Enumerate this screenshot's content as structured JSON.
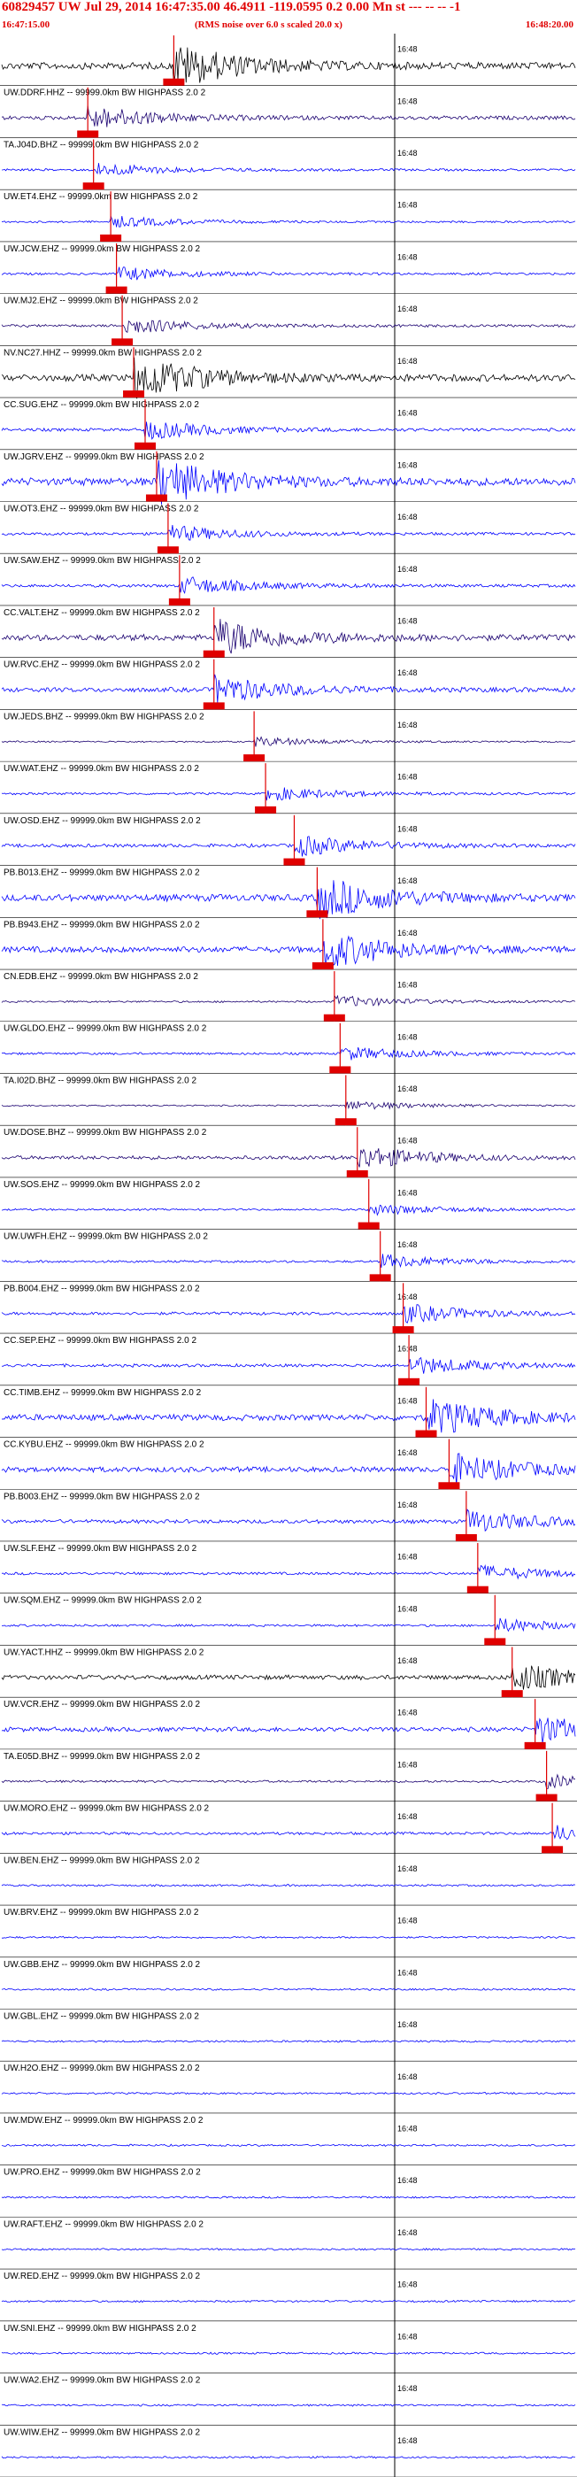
{
  "header": {
    "title": "60829457 UW Jul 29, 2014 16:47:35.00   46.4911 -119.0595  0.2 0.00 Mn st --- -- --  -1",
    "start_time": "16:47:15.00",
    "rms_note": "(RMS noise over 6.0 s scaled 20.0 x)",
    "end_time": "16:48:20.00"
  },
  "colors": {
    "header_text": "#e00000",
    "pick_marker": "#e00000",
    "trace_blue": "#0000ff",
    "trace_navy": "#1a0070",
    "trace_black": "#000000",
    "baseline": "#000000"
  },
  "chart_data": {
    "type": "seismogram",
    "time_start": "16:47:15.00",
    "time_end": "16:48:20.00",
    "minute_tick_label": "16:48",
    "traces": [
      {
        "label": "",
        "color": "black",
        "event": 0.3,
        "amp": 0.9
      },
      {
        "label": "UW.DDRF.HHZ -- 99999.0km BW  HIGHPASS  2.0  2",
        "color": "navy",
        "event": 0.15,
        "amp": 0.5
      },
      {
        "label": "TA.J04D.BHZ -- 99999.0km BW  HIGHPASS  2.0  2",
        "color": "blue",
        "event": 0.16,
        "amp": 0.3
      },
      {
        "label": "UW.ET4.EHZ -- 99999.0km BW  HIGHPASS  2.0  2",
        "color": "blue",
        "event": 0.19,
        "amp": 0.25
      },
      {
        "label": "UW.JCW.EHZ -- 99999.0km BW  HIGHPASS  2.0  2",
        "color": "blue",
        "event": 0.2,
        "amp": 0.3
      },
      {
        "label": "UW.MJ2.EHZ -- 99999.0km BW  HIGHPASS  2.0  2",
        "color": "navy",
        "event": 0.21,
        "amp": 0.35
      },
      {
        "label": "NV.NC27.HHZ -- 99999.0km BW  HIGHPASS  2.0  2",
        "color": "black",
        "event": 0.23,
        "amp": 0.9
      },
      {
        "label": "CC.SUG.EHZ -- 99999.0km BW  HIGHPASS  2.0  2",
        "color": "blue",
        "event": 0.25,
        "amp": 0.4
      },
      {
        "label": "UW.JGRV.EHZ -- 99999.0km BW  HIGHPASS  2.0  2",
        "color": "blue",
        "event": 0.27,
        "amp": 1.0
      },
      {
        "label": "UW.OT3.EHZ -- 99999.0km BW  HIGHPASS  2.0  2",
        "color": "blue",
        "event": 0.29,
        "amp": 0.35
      },
      {
        "label": "UW.SAW.EHZ -- 99999.0km BW  HIGHPASS  2.0  2",
        "color": "blue",
        "event": 0.31,
        "amp": 0.4
      },
      {
        "label": "CC.VALT.EHZ -- 99999.0km BW  HIGHPASS  2.0  2",
        "color": "navy",
        "event": 0.37,
        "amp": 0.8
      },
      {
        "label": "UW.RVC.EHZ -- 99999.0km BW  HIGHPASS  2.0  2",
        "color": "blue",
        "event": 0.37,
        "amp": 0.6
      },
      {
        "label": "UW.JEDS.BHZ -- 99999.0km BW  HIGHPASS  2.0  2",
        "color": "navy",
        "event": 0.44,
        "amp": 0.2
      },
      {
        "label": "UW.WAT.EHZ -- 99999.0km BW  HIGHPASS  2.0  2",
        "color": "blue",
        "event": 0.46,
        "amp": 0.3
      },
      {
        "label": "UW.OSD.EHZ -- 99999.0km BW  HIGHPASS  2.0  2",
        "color": "blue",
        "event": 0.51,
        "amp": 0.45
      },
      {
        "label": "PB.B013.EHZ -- 99999.0km BW  HIGHPASS  2.0  2",
        "color": "blue",
        "event": 0.55,
        "amp": 0.9
      },
      {
        "label": "PB.B943.EHZ -- 99999.0km BW  HIGHPASS  2.0  2",
        "color": "blue",
        "event": 0.56,
        "amp": 0.8
      },
      {
        "label": "CN.EDB.EHZ -- 99999.0km BW  HIGHPASS  2.0  2",
        "color": "navy",
        "event": 0.58,
        "amp": 0.25
      },
      {
        "label": "UW.GLDO.EHZ -- 99999.0km BW  HIGHPASS  2.0  2",
        "color": "blue",
        "event": 0.59,
        "amp": 0.3
      },
      {
        "label": "TA.I02D.BHZ -- 99999.0km BW  HIGHPASS  2.0  2",
        "color": "navy",
        "event": 0.6,
        "amp": 0.2
      },
      {
        "label": "UW.DOSE.BHZ -- 99999.0km BW  HIGHPASS  2.0  2",
        "color": "navy",
        "event": 0.62,
        "amp": 0.5
      },
      {
        "label": "UW.SOS.EHZ -- 99999.0km BW  HIGHPASS  2.0  2",
        "color": "blue",
        "event": 0.64,
        "amp": 0.25
      },
      {
        "label": "UW.UWFH.EHZ -- 99999.0km BW  HIGHPASS  2.0  2",
        "color": "blue",
        "event": 0.66,
        "amp": 0.3
      },
      {
        "label": "PB.B004.EHZ -- 99999.0km BW  HIGHPASS  2.0  2",
        "color": "blue",
        "event": 0.7,
        "amp": 0.4
      },
      {
        "label": "CC.SEP.EHZ -- 99999.0km BW  HIGHPASS  2.0  2",
        "color": "blue",
        "event": 0.71,
        "amp": 0.4
      },
      {
        "label": "CC.TIMB.EHZ -- 99999.0km BW  HIGHPASS  2.0  2",
        "color": "blue",
        "event": 0.74,
        "amp": 0.8
      },
      {
        "label": "CC.KYBU.EHZ -- 99999.0km BW  HIGHPASS  2.0  2",
        "color": "blue",
        "event": 0.78,
        "amp": 0.7
      },
      {
        "label": "PB.B003.EHZ -- 99999.0km BW  HIGHPASS  2.0  2",
        "color": "blue",
        "event": 0.81,
        "amp": 0.5
      },
      {
        "label": "UW.SLF.EHZ -- 99999.0km BW  HIGHPASS  2.0  2",
        "color": "blue",
        "event": 0.83,
        "amp": 0.35
      },
      {
        "label": "UW.SQM.EHZ -- 99999.0km BW  HIGHPASS  2.0  2",
        "color": "blue",
        "event": 0.86,
        "amp": 0.3
      },
      {
        "label": "UW.YACT.HHZ -- 99999.0km BW  HIGHPASS  2.0  2",
        "color": "black",
        "event": 0.89,
        "amp": 0.6
      },
      {
        "label": "UW.VCR.EHZ -- 99999.0km BW  HIGHPASS  2.0  2",
        "color": "blue",
        "event": 0.93,
        "amp": 0.6
      },
      {
        "label": "TA.E05D.BHZ -- 99999.0km BW  HIGHPASS  2.0  2",
        "color": "navy",
        "event": 0.95,
        "amp": 0.3
      },
      {
        "label": "UW.MORO.EHZ -- 99999.0km BW  HIGHPASS  2.0  2",
        "color": "blue",
        "event": 0.96,
        "amp": 0.35
      },
      {
        "label": "UW.BEN.EHZ -- 99999.0km BW  HIGHPASS  2.0  2",
        "color": "blue",
        "event": null,
        "amp": 0.25
      },
      {
        "label": "UW.BRV.EHZ -- 99999.0km BW  HIGHPASS  2.0  2",
        "color": "blue",
        "event": null,
        "amp": 0.25
      },
      {
        "label": "UW.GBB.EHZ -- 99999.0km BW  HIGHPASS  2.0  2",
        "color": "blue",
        "event": null,
        "amp": 0.25
      },
      {
        "label": "UW.GBL.EHZ -- 99999.0km BW  HIGHPASS  2.0  2",
        "color": "blue",
        "event": null,
        "amp": 0.25
      },
      {
        "label": "UW.H2O.EHZ -- 99999.0km BW  HIGHPASS  2.0  2",
        "color": "blue",
        "event": null,
        "amp": 0.25
      },
      {
        "label": "UW.MDW.EHZ -- 99999.0km BW  HIGHPASS  2.0  2",
        "color": "blue",
        "event": null,
        "amp": 0.25
      },
      {
        "label": "UW.PRO.EHZ -- 99999.0km BW  HIGHPASS  2.0  2",
        "color": "blue",
        "event": null,
        "amp": 0.25
      },
      {
        "label": "UW.RAFT.EHZ -- 99999.0km BW  HIGHPASS  2.0  2",
        "color": "blue",
        "event": null,
        "amp": 0.25
      },
      {
        "label": "UW.RED.EHZ -- 99999.0km BW  HIGHPASS  2.0  2",
        "color": "blue",
        "event": null,
        "amp": 0.25
      },
      {
        "label": "UW.SNI.EHZ -- 99999.0km BW  HIGHPASS  2.0  2",
        "color": "blue",
        "event": null,
        "amp": 0.25
      },
      {
        "label": "UW.WA2.EHZ -- 99999.0km BW  HIGHPASS  2.0  2",
        "color": "blue",
        "event": null,
        "amp": 0.25
      },
      {
        "label": "UW.WIW.EHZ -- 99999.0km BW  HIGHPASS  2.0  2",
        "color": "blue",
        "event": null,
        "amp": 0.25
      }
    ]
  }
}
